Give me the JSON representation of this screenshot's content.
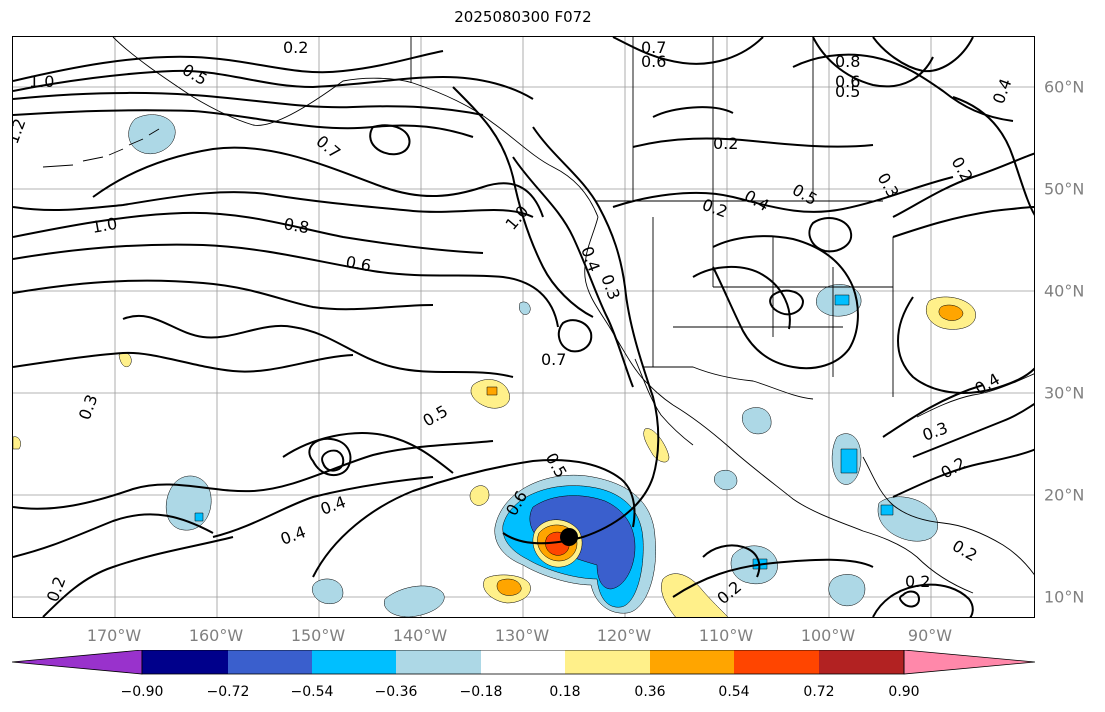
{
  "title": "2025080300 F072",
  "map": {
    "longitude_labels": [
      "170°W",
      "160°W",
      "150°W",
      "140°W",
      "130°W",
      "120°W",
      "110°W",
      "100°W",
      "90°W"
    ],
    "latitude_labels": [
      "60°N",
      "50°N",
      "40°N",
      "30°N",
      "20°N",
      "10°N"
    ],
    "contour_labels": [
      {
        "text": "0.2"
      },
      {
        "text": "0.5"
      },
      {
        "text": "1.0"
      },
      {
        "text": "1.2"
      },
      {
        "text": "0.7"
      },
      {
        "text": "0.7"
      },
      {
        "text": "0.6"
      },
      {
        "text": "0.8"
      },
      {
        "text": "0.6"
      },
      {
        "text": "0.5"
      },
      {
        "text": "0.4"
      },
      {
        "text": "0.2"
      },
      {
        "text": "0.4"
      },
      {
        "text": "0.5"
      },
      {
        "text": "0.2"
      },
      {
        "text": "0.3"
      },
      {
        "text": "0.2"
      },
      {
        "text": "1.0"
      },
      {
        "text": "0.8"
      },
      {
        "text": "0.6"
      },
      {
        "text": "1.0"
      },
      {
        "text": "0.4"
      },
      {
        "text": "0.3"
      },
      {
        "text": "0.7"
      },
      {
        "text": "0.5"
      },
      {
        "text": "0.3"
      },
      {
        "text": "0.4"
      },
      {
        "text": "0.4"
      },
      {
        "text": "0.5"
      },
      {
        "text": "0.6"
      },
      {
        "text": "0.2"
      },
      {
        "text": "0.3"
      },
      {
        "text": "0.4"
      },
      {
        "text": "0.2"
      },
      {
        "text": "0.2"
      },
      {
        "text": "0.2"
      },
      {
        "text": "0.2"
      }
    ],
    "storm_marker": "storm-center"
  },
  "colorbar": {
    "colors": [
      "#9932cc",
      "#00008b",
      "#3a5fcd",
      "#00bfff",
      "#add8e6",
      "#ffffff",
      "#fff08a",
      "#ffa500",
      "#ff4500",
      "#b22222",
      "#ff88aa"
    ],
    "tick_labels": [
      "−0.90",
      "−0.72",
      "−0.54",
      "−0.36",
      "−0.18",
      "0.18",
      "0.36",
      "0.54",
      "0.72",
      "0.90"
    ]
  }
}
